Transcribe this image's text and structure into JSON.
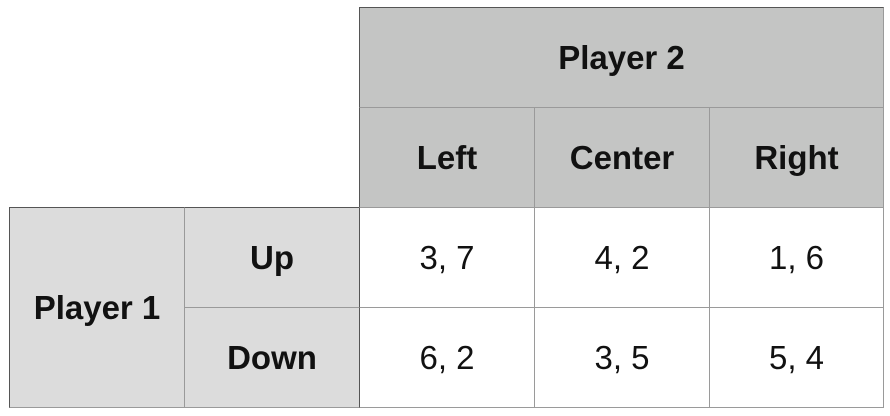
{
  "table": {
    "column_player": "Player 2",
    "row_player": "Player 1",
    "columns": [
      "Left",
      "Center",
      "Right"
    ],
    "rows": [
      {
        "label": "Up",
        "payoffs": [
          "3, 7",
          "4, 2",
          "1, 6"
        ]
      },
      {
        "label": "Down",
        "payoffs": [
          "6, 2",
          "3, 5",
          "5, 4"
        ]
      }
    ]
  },
  "colors": {
    "column_header_bg": "#c4c5c4",
    "row_header_bg": "#dcdcdc",
    "cell_bg": "#ffffff",
    "grid_line": "#9a9a9a"
  }
}
